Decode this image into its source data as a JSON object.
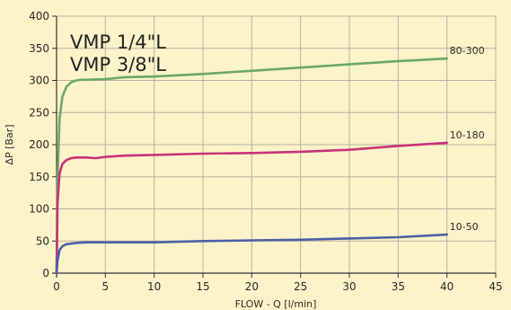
{
  "chart_data": {
    "type": "line",
    "title": [
      "VMP 1/4\"L",
      "VMP 3/8\"L"
    ],
    "xlabel": "FLOW - Q [l/min]",
    "ylabel": "ΔP [Bar]",
    "xlim": [
      0,
      45
    ],
    "ylim": [
      0,
      400
    ],
    "x_ticks": [
      0,
      5,
      10,
      15,
      20,
      25,
      30,
      35,
      40,
      45
    ],
    "y_ticks": [
      0,
      50,
      100,
      150,
      200,
      250,
      300,
      350,
      400
    ],
    "grid": true,
    "colors": {
      "background": "#fdf3c8",
      "grid": "#b8b0a0",
      "axis": "#333333"
    },
    "series": [
      {
        "name": "80-300",
        "color": "#6aaa64",
        "x": [
          0,
          0.1,
          0.3,
          0.6,
          1.0,
          1.5,
          2.0,
          2.5,
          3,
          5,
          7,
          10,
          15,
          20,
          25,
          30,
          35,
          40
        ],
        "y": [
          0,
          150,
          240,
          275,
          290,
          297,
          300,
          301,
          301,
          302,
          305,
          306,
          310,
          315,
          320,
          325,
          330,
          334
        ]
      },
      {
        "name": "10-180",
        "color": "#c8327a",
        "x": [
          0,
          0.1,
          0.3,
          0.6,
          1.0,
          1.5,
          2.0,
          3,
          4,
          5,
          7,
          10,
          15,
          20,
          25,
          30,
          35,
          40
        ],
        "y": [
          0,
          110,
          155,
          170,
          176,
          179,
          180,
          180,
          179,
          181,
          183,
          184,
          186,
          187,
          189,
          192,
          198,
          203
        ]
      },
      {
        "name": "10-50",
        "color": "#4a60a8",
        "x": [
          0,
          0.1,
          0.3,
          0.6,
          1.0,
          1.5,
          2.0,
          3,
          5,
          10,
          15,
          20,
          25,
          30,
          35,
          40
        ],
        "y": [
          0,
          20,
          36,
          42,
          45,
          46,
          47,
          48,
          48,
          48,
          50,
          51,
          52,
          54,
          56,
          60
        ]
      }
    ]
  }
}
